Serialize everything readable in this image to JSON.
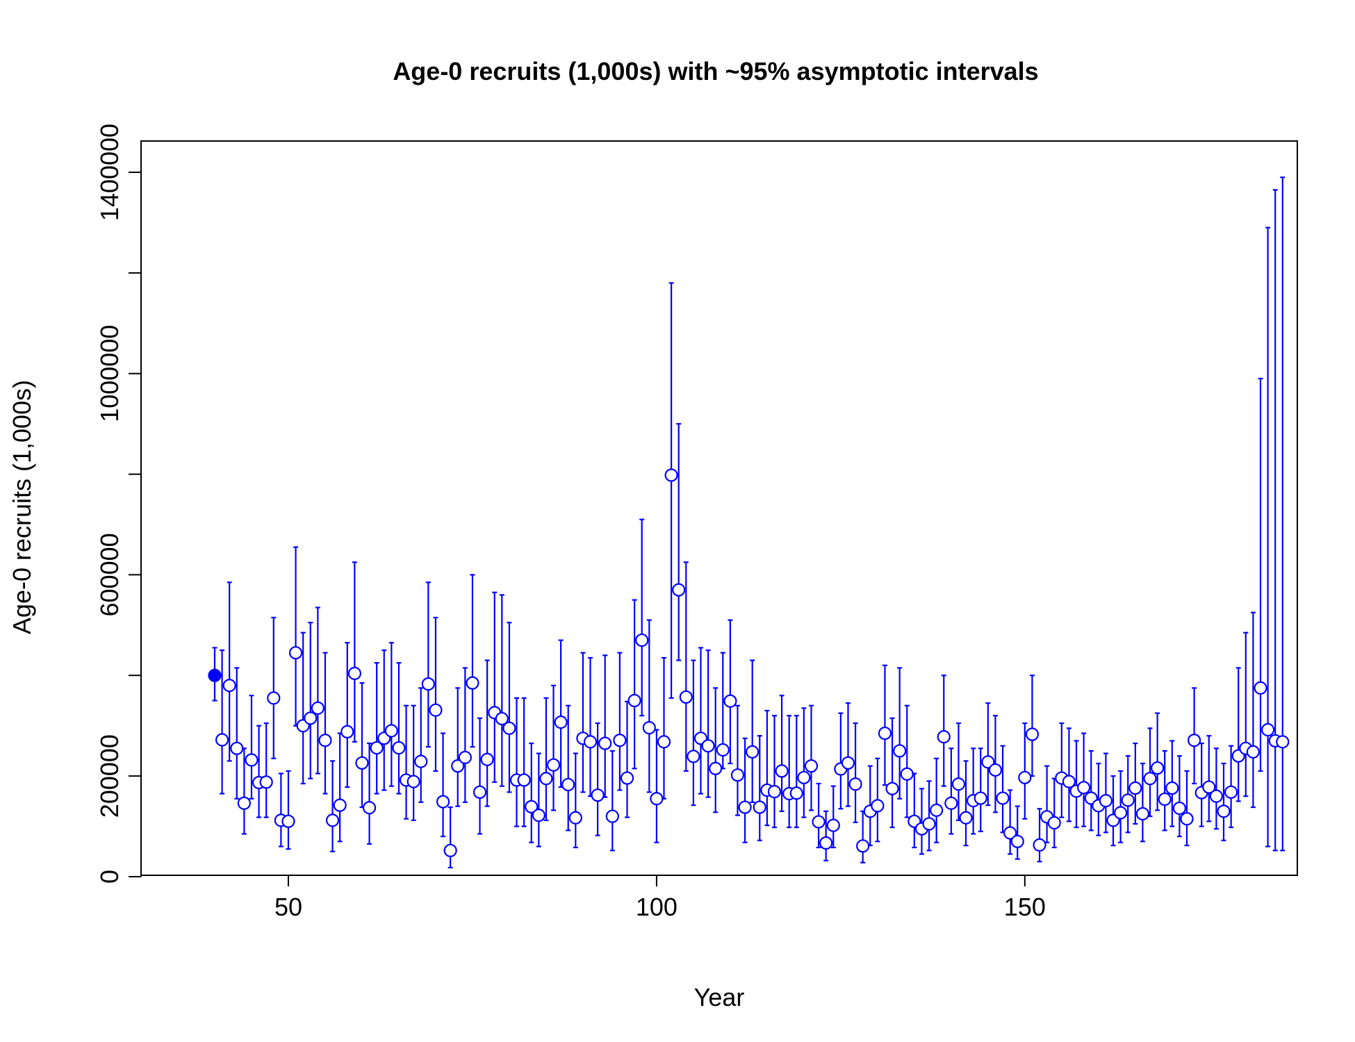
{
  "chart_data": {
    "type": "scatter",
    "title": "Age-0 recruits (1,000s) with ~95% asymptotic intervals",
    "xlabel": "Year",
    "ylabel": "Age-0 recruits (1,000s)",
    "xlim": [
      30,
      187
    ],
    "ylim": [
      0,
      1400000
    ],
    "xticks": [
      50,
      100,
      150
    ],
    "yticks": [
      0,
      200000,
      400000,
      600000,
      800000,
      1000000,
      1200000,
      1400000
    ],
    "ytick_labels": [
      "0",
      "200000",
      "",
      "600000",
      "",
      "1000000",
      "",
      "1400000"
    ],
    "grid": false,
    "legend": "none",
    "colors": {
      "series": "#0000ff",
      "axes": "#000000"
    },
    "first_point_marker": "filled",
    "other_point_marker": "open-circle",
    "x": [
      40,
      41,
      42,
      43,
      44,
      45,
      46,
      47,
      48,
      49,
      50,
      51,
      52,
      53,
      54,
      55,
      56,
      57,
      58,
      59,
      60,
      61,
      62,
      63,
      64,
      65,
      66,
      67,
      68,
      69,
      70,
      71,
      72,
      73,
      74,
      75,
      76,
      77,
      78,
      79,
      80,
      81,
      82,
      83,
      84,
      85,
      86,
      87,
      88,
      89,
      90,
      91,
      92,
      93,
      94,
      95,
      96,
      97,
      98,
      99,
      100,
      101,
      102,
      103,
      104,
      105,
      106,
      107,
      108,
      109,
      110,
      111,
      112,
      113,
      114,
      115,
      116,
      117,
      118,
      119,
      120,
      121,
      122,
      123,
      124,
      125,
      126,
      127,
      128,
      129,
      130,
      131,
      132,
      133,
      134,
      135,
      136,
      137,
      138,
      139,
      140,
      141,
      142,
      143,
      144,
      145,
      146,
      147,
      148,
      149,
      150,
      151,
      152,
      153,
      154,
      155,
      156,
      157,
      158,
      159,
      160,
      161,
      162,
      163,
      164,
      165,
      166,
      167,
      168,
      169,
      170,
      171,
      172,
      173,
      174,
      175,
      176,
      177,
      178,
      179,
      180,
      181,
      182,
      183,
      184,
      185
    ],
    "values": [
      400000,
      272000,
      380000,
      255000,
      146000,
      232000,
      187000,
      188000,
      355000,
      112000,
      110000,
      445000,
      300000,
      315000,
      335000,
      271000,
      112000,
      142000,
      288000,
      404000,
      226000,
      137000,
      256000,
      275000,
      290000,
      256000,
      192000,
      189000,
      229000,
      383000,
      331000,
      149000,
      52000,
      220000,
      237000,
      385000,
      168000,
      233000,
      326000,
      314000,
      295000,
      192000,
      192000,
      139000,
      122000,
      195000,
      222000,
      307000,
      183000,
      117000,
      275000,
      268000,
      162000,
      265000,
      120000,
      271000,
      196000,
      350000,
      470000,
      296000,
      155000,
      268000,
      798000,
      570000,
      357000,
      239000,
      275000,
      260000,
      215000,
      252000,
      349000,
      202000,
      138000,
      248000,
      138000,
      172000,
      169000,
      210000,
      165000,
      166000,
      197000,
      220000,
      109000,
      67000,
      102000,
      214000,
      226000,
      184000,
      61000,
      130000,
      141000,
      285000,
      175000,
      250000,
      204000,
      110000,
      95000,
      105000,
      132000,
      278000,
      146000,
      184000,
      117000,
      151000,
      156000,
      228000,
      212000,
      156000,
      87000,
      70000,
      197000,
      283000,
      63000,
      119000,
      107000,
      196000,
      189000,
      170000,
      177000,
      156000,
      141000,
      151000,
      112000,
      127000,
      152000,
      176000,
      125000,
      195000,
      216000,
      154000,
      176000,
      136000,
      115000,
      271000,
      167000,
      178000,
      160000,
      130000,
      168000,
      240000,
      255000,
      248000,
      375000,
      292000,
      270000,
      268000
    ],
    "lower": [
      350000,
      165000,
      230000,
      155000,
      85000,
      155000,
      118000,
      118000,
      235000,
      60000,
      55000,
      300000,
      185000,
      195000,
      205000,
      165000,
      50000,
      70000,
      178000,
      268000,
      138000,
      65000,
      165000,
      172000,
      180000,
      165000,
      115000,
      112000,
      148000,
      258000,
      210000,
      80000,
      18000,
      140000,
      148000,
      258000,
      85000,
      140000,
      188000,
      180000,
      168000,
      100000,
      100000,
      68000,
      60000,
      112000,
      132000,
      178000,
      92000,
      58000,
      168000,
      160000,
      82000,
      158000,
      52000,
      172000,
      118000,
      215000,
      320000,
      168000,
      68000,
      155000,
      355000,
      430000,
      210000,
      142000,
      165000,
      158000,
      128000,
      215000,
      225000,
      122000,
      68000,
      148000,
      72000,
      102000,
      98000,
      130000,
      98000,
      98000,
      118000,
      132000,
      58000,
      32000,
      58000,
      135000,
      140000,
      108000,
      28000,
      62000,
      70000,
      182000,
      98000,
      155000,
      118000,
      58000,
      45000,
      52000,
      68000,
      180000,
      85000,
      112000,
      62000,
      85000,
      90000,
      142000,
      128000,
      88000,
      45000,
      35000,
      115000,
      200000,
      30000,
      68000,
      58000,
      118000,
      110000,
      98000,
      100000,
      92000,
      82000,
      88000,
      62000,
      68000,
      88000,
      105000,
      70000,
      120000,
      132000,
      92000,
      100000,
      80000,
      62000,
      185000,
      100000,
      110000,
      95000,
      72000,
      98000,
      150000,
      160000,
      138000,
      210000,
      60000,
      52000,
      52000
    ],
    "upper": [
      455000,
      450000,
      585000,
      415000,
      255000,
      360000,
      300000,
      305000,
      515000,
      205000,
      210000,
      655000,
      485000,
      505000,
      535000,
      445000,
      230000,
      285000,
      465000,
      625000,
      385000,
      265000,
      425000,
      450000,
      465000,
      425000,
      340000,
      340000,
      375000,
      585000,
      515000,
      285000,
      138000,
      375000,
      415000,
      600000,
      315000,
      430000,
      565000,
      560000,
      505000,
      355000,
      355000,
      265000,
      245000,
      355000,
      380000,
      470000,
      340000,
      245000,
      445000,
      435000,
      305000,
      440000,
      250000,
      445000,
      348000,
      550000,
      710000,
      510000,
      292000,
      435000,
      1180000,
      900000,
      625000,
      430000,
      455000,
      450000,
      375000,
      445000,
      510000,
      340000,
      275000,
      430000,
      280000,
      330000,
      320000,
      360000,
      320000,
      320000,
      335000,
      340000,
      185000,
      130000,
      180000,
      325000,
      345000,
      305000,
      130000,
      220000,
      235000,
      420000,
      315000,
      415000,
      340000,
      205000,
      175000,
      190000,
      235000,
      400000,
      255000,
      305000,
      230000,
      255000,
      255000,
      345000,
      320000,
      260000,
      172000,
      140000,
      305000,
      400000,
      135000,
      220000,
      195000,
      305000,
      295000,
      270000,
      285000,
      250000,
      225000,
      245000,
      200000,
      210000,
      240000,
      265000,
      225000,
      295000,
      325000,
      250000,
      270000,
      240000,
      210000,
      375000,
      265000,
      280000,
      255000,
      225000,
      260000,
      415000,
      485000,
      525000,
      990000,
      1290000,
      1365000,
      1390000
    ]
  }
}
